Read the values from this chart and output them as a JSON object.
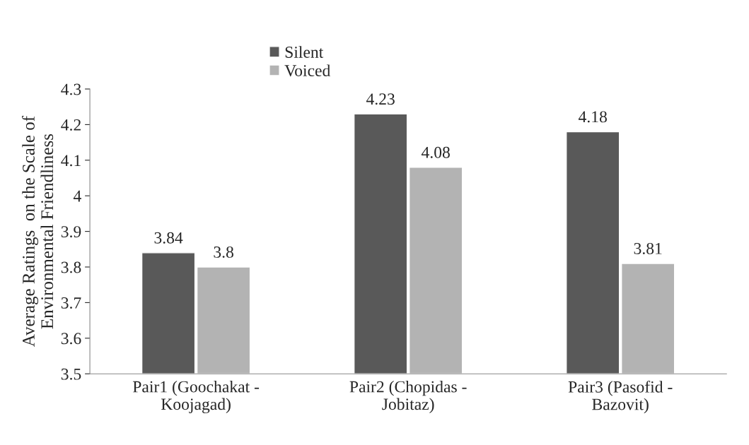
{
  "chart_data": {
    "type": "bar",
    "categories": [
      "Pair1 (Goochakat -\nKoojagad)",
      "Pair2 (Chopidas -\nJobitaz)",
      "Pair3 (Pasofid -\nBazovit)"
    ],
    "series": [
      {
        "name": "Silent",
        "color": "#595959",
        "values": [
          3.84,
          4.23,
          4.18
        ]
      },
      {
        "name": "Voiced",
        "color": "#b3b3b3",
        "values": [
          3.8,
          4.08,
          3.81
        ]
      }
    ],
    "ylabel": "Average Ratings  on the Scale of\nEnvironmental Friendliness",
    "ylim": [
      3.5,
      4.3
    ],
    "yticks": [
      3.5,
      3.6,
      3.7,
      3.8,
      3.9,
      4,
      4.1,
      4.2,
      4.3
    ],
    "data_labels": true,
    "legend": "top",
    "grid": false
  }
}
